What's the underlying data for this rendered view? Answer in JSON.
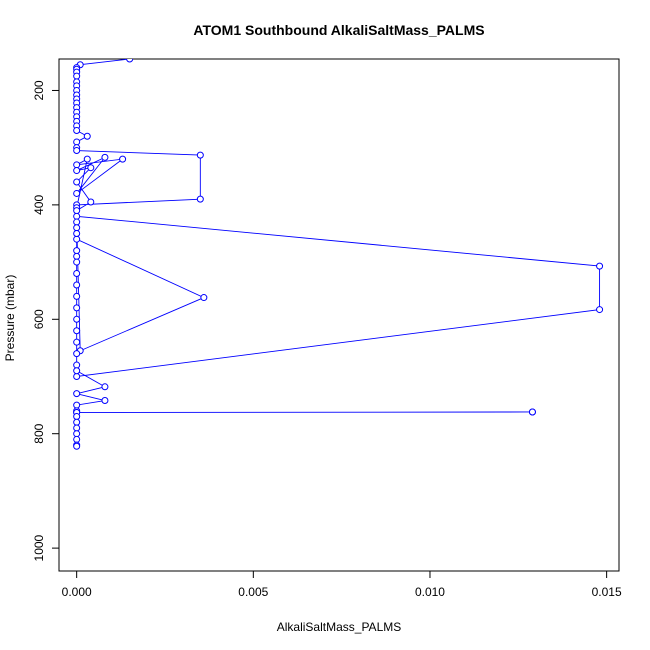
{
  "chart_data": {
    "type": "line",
    "title": "ATOM1 Southbound AlkaliSaltMass_PALMS",
    "xlabel": "AlkaliSaltMass_PALMS",
    "ylabel": "Pressure (mbar)",
    "xlim": [
      -0.0005,
      0.01535
    ],
    "ylim": [
      1040,
      145
    ],
    "y_reversed": true,
    "x_ticks": [
      "0.000",
      "0.005",
      "0.010",
      "0.015"
    ],
    "y_ticks": [
      "200",
      "400",
      "600",
      "800",
      "1000"
    ],
    "grid": false,
    "legend": "none",
    "color": "#0000ff",
    "series": [
      {
        "points": [
          [
            0.0015,
            145
          ],
          [
            0.0001,
            155
          ],
          [
            0.0,
            160
          ],
          [
            0.0,
            163
          ],
          [
            0.0,
            168
          ],
          [
            0.0,
            175
          ],
          [
            0.0,
            185
          ],
          [
            0.0,
            192
          ],
          [
            0.0,
            200
          ],
          [
            0.0,
            208
          ],
          [
            0.0,
            215
          ],
          [
            0.0,
            222
          ],
          [
            0.0,
            230
          ],
          [
            0.0,
            238
          ],
          [
            0.0,
            246
          ],
          [
            0.0,
            254
          ],
          [
            0.0,
            262
          ],
          [
            0.0,
            270
          ],
          [
            0.0003,
            280
          ],
          [
            0.0,
            290
          ],
          [
            0.0,
            300
          ],
          [
            0.0,
            305
          ],
          [
            0.0035,
            313
          ],
          [
            0.0035,
            390
          ],
          [
            0.0,
            400
          ],
          [
            0.0,
            405
          ],
          [
            0.0003,
            320
          ],
          [
            0.0,
            330
          ],
          [
            0.0013,
            320
          ],
          [
            0.0,
            380
          ],
          [
            0.0008,
            317
          ],
          [
            0.0,
            340
          ],
          [
            0.0004,
            335
          ],
          [
            0.0,
            360
          ],
          [
            0.0004,
            395
          ],
          [
            0.0,
            410
          ],
          [
            0.0,
            420
          ],
          [
            0.0148,
            507
          ],
          [
            0.0148,
            583
          ],
          [
            0.0,
            700
          ],
          [
            0.0,
            480
          ],
          [
            0.0,
            460
          ],
          [
            0.0036,
            562
          ],
          [
            0.0001,
            655
          ],
          [
            0.0,
            430
          ],
          [
            0.0,
            440
          ],
          [
            0.0,
            450
          ],
          [
            0.0,
            490
          ],
          [
            0.0,
            500
          ],
          [
            0.0,
            520
          ],
          [
            0.0,
            540
          ],
          [
            0.0,
            560
          ],
          [
            0.0,
            580
          ],
          [
            0.0,
            600
          ],
          [
            0.0,
            620
          ],
          [
            0.0,
            640
          ],
          [
            0.0,
            660
          ],
          [
            0.0,
            680
          ],
          [
            0.0,
            690
          ],
          [
            0.0008,
            718
          ],
          [
            0.0,
            730
          ],
          [
            0.0008,
            742
          ],
          [
            0.0,
            750
          ],
          [
            0.0,
            760
          ],
          [
            0.0,
            763
          ],
          [
            0.0129,
            762
          ],
          [
            0.0129,
            762
          ],
          [
            0.0,
            763
          ],
          [
            0.0,
            770
          ],
          [
            0.0,
            780
          ],
          [
            0.0,
            790
          ],
          [
            0.0,
            800
          ],
          [
            0.0,
            810
          ],
          [
            0.0,
            820
          ],
          [
            0.0,
            822
          ]
        ]
      }
    ]
  }
}
